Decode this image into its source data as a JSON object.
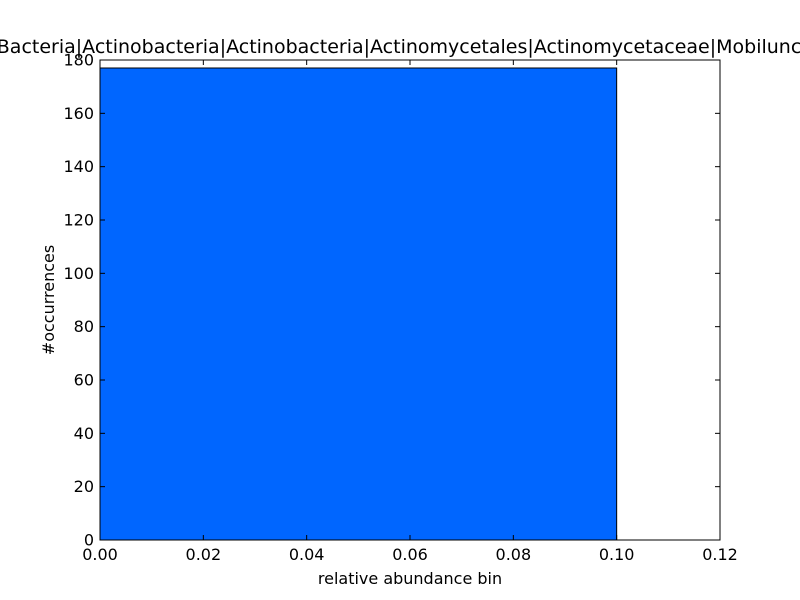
{
  "chart_data": {
    "type": "bar",
    "title": "Bacteria|Actinobacteria|Actinobacteria|Actinomycetales|Actinomycetaceae|Mobiluncus",
    "xlabel": "relative abundance bin",
    "ylabel": "#occurrences",
    "xlim": [
      0.0,
      0.12
    ],
    "ylim": [
      0,
      180
    ],
    "x_ticks": [
      "0.00",
      "0.02",
      "0.04",
      "0.06",
      "0.08",
      "0.10",
      "0.12"
    ],
    "y_ticks": [
      "0",
      "20",
      "40",
      "60",
      "80",
      "100",
      "120",
      "140",
      "160",
      "180"
    ],
    "bars": [
      {
        "x_start": 0.0,
        "x_end": 0.1,
        "value": 177
      }
    ],
    "bar_color": "#0066ff",
    "grid": false,
    "legend": "none"
  }
}
